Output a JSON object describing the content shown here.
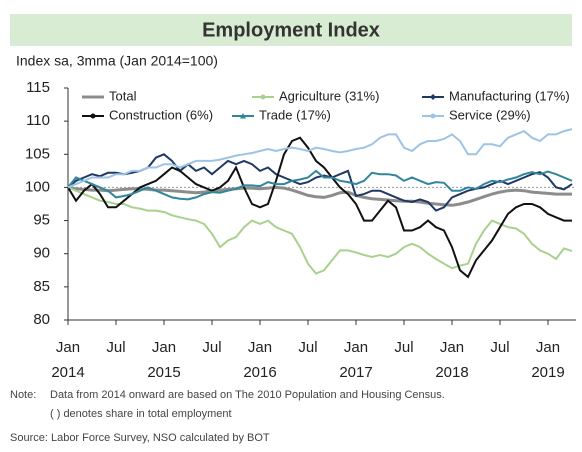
{
  "chart_data": {
    "type": "line",
    "title": "Employment Index",
    "subtitle": "Index sa, 3mma (Jan 2014=100)",
    "x": [
      "2014-01",
      "2014-02",
      "2014-03",
      "2014-04",
      "2014-05",
      "2014-06",
      "2014-07",
      "2014-08",
      "2014-09",
      "2014-10",
      "2014-11",
      "2014-12",
      "2015-01",
      "2015-02",
      "2015-03",
      "2015-04",
      "2015-05",
      "2015-06",
      "2015-07",
      "2015-08",
      "2015-09",
      "2015-10",
      "2015-11",
      "2015-12",
      "2016-01",
      "2016-02",
      "2016-03",
      "2016-04",
      "2016-05",
      "2016-06",
      "2016-07",
      "2016-08",
      "2016-09",
      "2016-10",
      "2016-11",
      "2016-12",
      "2017-01",
      "2017-02",
      "2017-03",
      "2017-04",
      "2017-05",
      "2017-06",
      "2017-07",
      "2017-08",
      "2017-09",
      "2017-10",
      "2017-11",
      "2017-12",
      "2018-01",
      "2018-02",
      "2018-03",
      "2018-04",
      "2018-05",
      "2018-06",
      "2018-07",
      "2018-08",
      "2018-09",
      "2018-10",
      "2018-11",
      "2018-12",
      "2019-01",
      "2019-02",
      "2019-03",
      "2019-04"
    ],
    "xlim": [
      "2014-01",
      "2019-04"
    ],
    "xticks": [
      {
        "value": "2014-01",
        "label": "Jan"
      },
      {
        "value": "2014-07",
        "label": "Jul"
      },
      {
        "value": "2015-01",
        "label": "Jan"
      },
      {
        "value": "2015-07",
        "label": "Jul"
      },
      {
        "value": "2016-01",
        "label": "Jan"
      },
      {
        "value": "2016-07",
        "label": "Jul"
      },
      {
        "value": "2017-01",
        "label": "Jan"
      },
      {
        "value": "2017-07",
        "label": "Jul"
      },
      {
        "value": "2018-01",
        "label": "Jan"
      },
      {
        "value": "2018-07",
        "label": "Jul"
      },
      {
        "value": "2019-01",
        "label": "Jan"
      }
    ],
    "xticks_year": [
      {
        "value": "2014-01",
        "label": "2014"
      },
      {
        "value": "2015-01",
        "label": "2015"
      },
      {
        "value": "2016-01",
        "label": "2016"
      },
      {
        "value": "2017-01",
        "label": "2017"
      },
      {
        "value": "2018-01",
        "label": "2018"
      },
      {
        "value": "2019-01",
        "label": "2019"
      }
    ],
    "ylim": [
      80,
      115
    ],
    "yticks": [
      80,
      85,
      90,
      95,
      100,
      105,
      110,
      115
    ],
    "reference_line": 100,
    "legend": "top",
    "series": [
      {
        "name": "Total",
        "color": "#8c8c8c",
        "values": [
          100,
          99.8,
          99.7,
          99.6,
          99.6,
          99.5,
          99.6,
          99.7,
          99.8,
          99.8,
          99.7,
          99.6,
          99.6,
          99.5,
          99.4,
          99.3,
          99.2,
          99.3,
          99.5,
          99.6,
          99.7,
          99.8,
          99.9,
          99.9,
          99.8,
          99.9,
          100,
          99.9,
          99.6,
          99.2,
          98.8,
          98.6,
          98.5,
          98.8,
          99.2,
          99.3,
          98.8,
          98.5,
          98.3,
          98.2,
          98.1,
          98,
          97.9,
          97.9,
          97.8,
          97.6,
          97.5,
          97.4,
          97.3,
          97.5,
          97.8,
          98.2,
          98.6,
          99,
          99.3,
          99.5,
          99.6,
          99.5,
          99.3,
          99.2,
          99.1,
          99,
          99,
          99
        ]
      },
      {
        "name": "Agriculture (31%)",
        "color": "#a9d18e",
        "values": [
          100,
          99.5,
          99,
          98.5,
          98,
          97.8,
          97.5,
          97.5,
          97,
          96.8,
          96.5,
          96.5,
          96.3,
          95.8,
          95.5,
          95.2,
          95,
          94.5,
          93,
          91,
          92,
          92.5,
          94,
          95,
          94.5,
          95,
          94,
          93.5,
          93,
          91,
          88.5,
          87,
          87.5,
          89,
          90.5,
          90.5,
          90.2,
          89.8,
          89.5,
          89.8,
          89.5,
          90,
          91,
          91.5,
          91,
          90,
          89.2,
          88.5,
          87.8,
          88.2,
          88.5,
          91.5,
          93.5,
          95,
          94.5,
          94,
          93.8,
          93,
          91.5,
          90.5,
          90,
          89.2,
          90.8,
          90.4
        ]
      },
      {
        "name": "Manufacturing (17%)",
        "color": "#1f3864",
        "values": [
          100,
          101,
          101.5,
          102,
          101.7,
          102.2,
          102.2,
          102,
          102.2,
          102.5,
          103,
          104.5,
          105,
          104,
          102.5,
          103.5,
          102.5,
          103,
          102,
          103,
          104,
          103.5,
          104,
          103.5,
          102.5,
          103,
          102,
          101.5,
          101,
          100.5,
          100.8,
          101.5,
          101.8,
          101.5,
          102,
          102.5,
          98.7,
          99,
          99.5,
          99.5,
          99,
          98.5,
          98,
          97.8,
          98.2,
          97.8,
          96.5,
          97,
          98.5,
          99,
          99.5,
          99.8,
          100,
          100.5,
          101,
          100.5,
          101,
          101.5,
          102,
          102.3,
          101.5,
          100,
          99.7,
          100.5
        ]
      },
      {
        "name": "Construction (6%)",
        "color": "#111111",
        "values": [
          100,
          98,
          99.5,
          100.5,
          99,
          97,
          97,
          98,
          99,
          100,
          100.5,
          101,
          102,
          103,
          102.5,
          101.5,
          100.5,
          100,
          99.5,
          100,
          101,
          103,
          100,
          97.5,
          97,
          97.5,
          101,
          105,
          107,
          107.5,
          106,
          104,
          103,
          101.5,
          100,
          99,
          97.5,
          95,
          95,
          96.5,
          98,
          97,
          93.5,
          93.5,
          94,
          95,
          94,
          93.5,
          91,
          87.5,
          86.5,
          89,
          90.5,
          92,
          94,
          96,
          97,
          97.5,
          97.5,
          97,
          96,
          95.5,
          95,
          95
        ]
      },
      {
        "name": "Trade (17%)",
        "color": "#31859c",
        "values": [
          100,
          101.5,
          101,
          100.5,
          100,
          99.5,
          98.5,
          98.7,
          99,
          99.5,
          100,
          99.5,
          99,
          98.5,
          98.3,
          98.2,
          98.5,
          99,
          99.3,
          99.2,
          99.5,
          99.8,
          100.3,
          100.3,
          100.2,
          100.8,
          100.5,
          100.5,
          101,
          101.2,
          101.5,
          102.5,
          101.5,
          101.5,
          101,
          100.8,
          100.5,
          101,
          102.2,
          102,
          102,
          101.8,
          101,
          101.5,
          101,
          100.5,
          100.8,
          100.7,
          99.5,
          99.5,
          100,
          99.8,
          100.5,
          101,
          100.8,
          101.2,
          101.5,
          102,
          102.3,
          102,
          102.4,
          102,
          101.5,
          101
        ]
      },
      {
        "name": "Service (29%)",
        "color": "#9dc3e6",
        "values": [
          100,
          100.5,
          101,
          101.5,
          101.5,
          101.5,
          102,
          102,
          102.5,
          102.5,
          103,
          103,
          103.5,
          103.5,
          103,
          103.5,
          104,
          104,
          104,
          104.2,
          104.5,
          104.8,
          105,
          105.2,
          105.5,
          105.8,
          105.5,
          105.8,
          106,
          105.8,
          105.5,
          106,
          105.8,
          105.5,
          105.3,
          105.5,
          105.8,
          106,
          106.5,
          107.5,
          108,
          108,
          106,
          105.5,
          106.5,
          107,
          107,
          107.3,
          108,
          107,
          105,
          105,
          106.5,
          106.5,
          106.2,
          107.5,
          108,
          108.5,
          107.5,
          107,
          108,
          108,
          108.5,
          108.8
        ]
      }
    ],
    "note_label": "Note:",
    "notes": [
      "Data from 2014 onward are based on The 2010 Population and Housing Census.",
      "( ) denotes share in total employment"
    ],
    "source": "Source: Labor Force Survey, NSO calculated by BOT"
  }
}
